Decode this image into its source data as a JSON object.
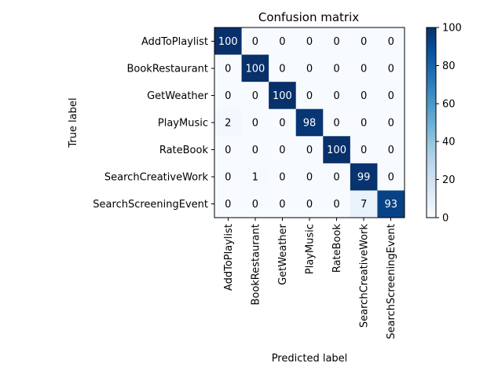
{
  "chart_data": {
    "type": "heatmap",
    "title": "Confusion matrix",
    "xlabel": "Predicted label",
    "ylabel": "True label",
    "row_labels": [
      "AddToPlaylist",
      "BookRestaurant",
      "GetWeather",
      "PlayMusic",
      "RateBook",
      "SearchCreativeWork",
      "SearchScreeningEvent"
    ],
    "col_labels": [
      "AddToPlaylist",
      "BookRestaurant",
      "GetWeather",
      "PlayMusic",
      "RateBook",
      "SearchCreativeWork",
      "SearchScreeningEvent"
    ],
    "values": [
      [
        100,
        0,
        0,
        0,
        0,
        0,
        0
      ],
      [
        0,
        100,
        0,
        0,
        0,
        0,
        0
      ],
      [
        0,
        0,
        100,
        0,
        0,
        0,
        0
      ],
      [
        2,
        0,
        0,
        98,
        0,
        0,
        0
      ],
      [
        0,
        0,
        0,
        0,
        100,
        0,
        0
      ],
      [
        0,
        1,
        0,
        0,
        0,
        99,
        0
      ],
      [
        0,
        0,
        0,
        0,
        0,
        7,
        93
      ]
    ],
    "vmin": 0,
    "vmax": 100,
    "colormap": "Blues",
    "colorbar_ticks": [
      0,
      20,
      40,
      60,
      80,
      100
    ],
    "text_threshold": 50,
    "text_color_light": "#ffffff",
    "text_color_dark": "#000000"
  }
}
